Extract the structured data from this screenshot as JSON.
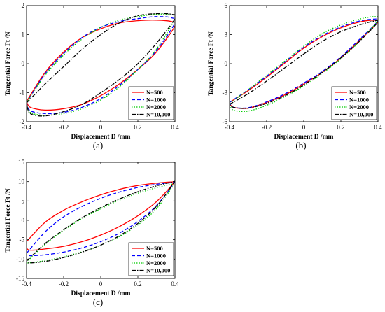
{
  "legend_labels": [
    "N=500",
    "N=1000",
    "N=2000",
    "N=10,000"
  ],
  "series_styles": [
    {
      "color": "#ff0000",
      "dash": "solid"
    },
    {
      "color": "#0000ff",
      "dash": "dashed"
    },
    {
      "color": "#00cc00",
      "dash": "dotted"
    },
    {
      "color": "#000000",
      "dash": "dash-dot"
    }
  ],
  "chart_data": [
    {
      "type": "line",
      "panel_label": "(a)",
      "xlabel": "Displacement D /mm",
      "ylabel": "Tangential Force Ft /N",
      "xlim": [
        -0.4,
        0.4
      ],
      "ylim": [
        -2,
        2
      ],
      "xticks": [
        "-0.4",
        "-0.2",
        "0",
        "0.2",
        "0.4"
      ],
      "yticks": [
        "-2",
        "-1",
        "0",
        "1",
        "2"
      ],
      "grid": false,
      "legend_position": "lower-right",
      "series": [
        {
          "name": "N=500",
          "x": [
            -0.4,
            -0.3,
            -0.2,
            -0.1,
            0.0,
            0.1,
            0.2,
            0.3,
            0.38,
            0.4,
            0.3,
            0.2,
            0.1,
            0.0,
            -0.1,
            -0.2,
            -0.3,
            -0.38,
            -0.4
          ],
          "y": [
            -1.3,
            -0.3,
            0.4,
            0.9,
            1.2,
            1.4,
            1.48,
            1.5,
            1.45,
            1.3,
            0.4,
            -0.2,
            -0.7,
            -1.1,
            -1.4,
            -1.55,
            -1.6,
            -1.5,
            -1.3
          ]
        },
        {
          "name": "N=1000",
          "x": [
            -0.4,
            -0.3,
            -0.2,
            -0.1,
            0.0,
            0.1,
            0.2,
            0.3,
            0.38,
            0.4,
            0.3,
            0.2,
            0.1,
            0.0,
            -0.1,
            -0.2,
            -0.3,
            -0.38,
            -0.4
          ],
          "y": [
            -1.35,
            -0.35,
            0.35,
            0.9,
            1.25,
            1.45,
            1.55,
            1.62,
            1.58,
            1.4,
            0.45,
            -0.2,
            -0.75,
            -1.2,
            -1.5,
            -1.68,
            -1.72,
            -1.62,
            -1.35
          ]
        },
        {
          "name": "N=2000",
          "x": [
            -0.4,
            -0.3,
            -0.2,
            -0.1,
            0.0,
            0.1,
            0.2,
            0.3,
            0.38,
            0.4,
            0.3,
            0.2,
            0.1,
            0.0,
            -0.1,
            -0.2,
            -0.3,
            -0.38,
            -0.4
          ],
          "y": [
            -1.35,
            -0.4,
            0.3,
            0.85,
            1.25,
            1.5,
            1.62,
            1.7,
            1.68,
            1.55,
            0.5,
            -0.2,
            -0.8,
            -1.25,
            -1.55,
            -1.72,
            -1.78,
            -1.68,
            -1.35
          ]
        },
        {
          "name": "N=10,000",
          "x": [
            -0.4,
            -0.3,
            -0.2,
            -0.1,
            0.0,
            0.1,
            0.2,
            0.3,
            0.38,
            0.4,
            0.3,
            0.2,
            0.1,
            0.0,
            -0.1,
            -0.2,
            -0.3,
            -0.38,
            -0.4
          ],
          "y": [
            -1.35,
            -0.7,
            -0.1,
            0.5,
            1.0,
            1.4,
            1.65,
            1.72,
            1.7,
            1.55,
            0.7,
            0.0,
            -0.55,
            -1.0,
            -1.4,
            -1.65,
            -1.8,
            -1.72,
            -1.35
          ]
        }
      ]
    },
    {
      "type": "line",
      "panel_label": "(b)",
      "xlabel": "Displacement D /mm",
      "ylabel": "Tangential Force Ft /N",
      "xlim": [
        -0.4,
        0.4
      ],
      "ylim": [
        -6,
        6
      ],
      "xticks": [
        "-0.4",
        "-0.2",
        "0",
        "0.2",
        "0.4"
      ],
      "yticks": [
        "-6",
        "-3",
        "0",
        "3",
        "6"
      ],
      "grid": false,
      "legend_position": "lower-right",
      "series": [
        {
          "name": "N=500",
          "x": [
            -0.4,
            -0.3,
            -0.2,
            -0.1,
            0.0,
            0.1,
            0.2,
            0.3,
            0.38,
            0.4,
            0.3,
            0.2,
            0.1,
            0.0,
            -0.1,
            -0.2,
            -0.3,
            -0.38,
            -0.4
          ],
          "y": [
            -4.0,
            -2.8,
            -1.4,
            0.1,
            1.6,
            2.8,
            3.7,
            4.3,
            4.5,
            4.3,
            2.4,
            0.6,
            -0.9,
            -2.1,
            -3.2,
            -4.0,
            -4.6,
            -4.5,
            -4.0
          ]
        },
        {
          "name": "N=1000",
          "x": [
            -0.4,
            -0.3,
            -0.2,
            -0.1,
            0.0,
            0.1,
            0.2,
            0.3,
            0.38,
            0.4,
            0.3,
            0.2,
            0.1,
            0.0,
            -0.1,
            -0.2,
            -0.3,
            -0.38,
            -0.4
          ],
          "y": [
            -4.0,
            -2.7,
            -1.3,
            0.2,
            1.7,
            2.9,
            3.8,
            4.4,
            4.6,
            4.4,
            2.5,
            0.7,
            -0.8,
            -2.0,
            -3.1,
            -3.95,
            -4.55,
            -4.5,
            -4.0
          ]
        },
        {
          "name": "N=2000",
          "x": [
            -0.4,
            -0.3,
            -0.2,
            -0.1,
            0.0,
            0.1,
            0.2,
            0.3,
            0.38,
            0.4,
            0.3,
            0.2,
            0.1,
            0.0,
            -0.1,
            -0.2,
            -0.3,
            -0.38,
            -0.4
          ],
          "y": [
            -4.1,
            -2.7,
            -1.2,
            0.3,
            1.8,
            3.1,
            4.0,
            4.6,
            4.85,
            4.5,
            2.3,
            0.5,
            -1.0,
            -2.3,
            -3.4,
            -4.3,
            -4.9,
            -4.8,
            -4.1
          ]
        },
        {
          "name": "N=10,000",
          "x": [
            -0.4,
            -0.3,
            -0.2,
            -0.1,
            0.0,
            0.1,
            0.2,
            0.3,
            0.38,
            0.4,
            0.3,
            0.2,
            0.1,
            0.0,
            -0.1,
            -0.2,
            -0.3,
            -0.38,
            -0.4
          ],
          "y": [
            -4.2,
            -3.1,
            -1.8,
            -0.4,
            1.0,
            2.3,
            3.3,
            4.0,
            4.4,
            4.3,
            2.3,
            0.6,
            -0.9,
            -2.2,
            -3.3,
            -4.1,
            -4.6,
            -4.5,
            -4.2
          ]
        }
      ]
    },
    {
      "type": "line",
      "panel_label": "(c)",
      "xlabel": "Displacement D /mm",
      "ylabel": "Tangential Force Ft /N",
      "xlim": [
        -0.4,
        0.4
      ],
      "ylim": [
        -15,
        15
      ],
      "xticks": [
        "-0.4",
        "-0.2",
        "0",
        "0.2",
        "0.4"
      ],
      "yticks": [
        "-15",
        "-10",
        "-5",
        "0",
        "5",
        "10",
        "15"
      ],
      "grid": false,
      "legend_position": "lower-right",
      "series": [
        {
          "name": "N=500",
          "x": [
            -0.4,
            -0.3,
            -0.2,
            -0.1,
            0.0,
            0.1,
            0.2,
            0.3,
            0.38,
            0.39,
            0.3,
            0.2,
            0.1,
            0.0,
            -0.1,
            -0.2,
            -0.3,
            -0.39,
            -0.4
          ],
          "y": [
            -5.5,
            -0.5,
            2.6,
            4.8,
            6.6,
            8.0,
            9.0,
            9.6,
            9.9,
            9.5,
            4.8,
            1.2,
            -1.6,
            -3.8,
            -5.5,
            -6.7,
            -7.4,
            -7.6,
            -5.5
          ]
        },
        {
          "name": "N=1000",
          "x": [
            -0.4,
            -0.3,
            -0.2,
            -0.1,
            0.0,
            0.1,
            0.2,
            0.3,
            0.38,
            0.39,
            0.3,
            0.2,
            0.1,
            0.0,
            -0.1,
            -0.2,
            -0.3,
            -0.39,
            -0.4
          ],
          "y": [
            -8.5,
            -3.0,
            0.9,
            3.6,
            5.7,
            7.3,
            8.5,
            9.3,
            9.7,
            9.3,
            3.8,
            -0.3,
            -3.3,
            -5.5,
            -7.1,
            -8.2,
            -8.9,
            -9.1,
            -8.5
          ]
        },
        {
          "name": "N=2000",
          "x": [
            -0.4,
            -0.3,
            -0.2,
            -0.1,
            0.0,
            0.1,
            0.2,
            0.3,
            0.38,
            0.39,
            0.3,
            0.2,
            0.1,
            0.0,
            -0.1,
            -0.2,
            -0.3,
            -0.39,
            -0.4
          ],
          "y": [
            -10.8,
            -6.2,
            -2.6,
            0.5,
            3.0,
            5.2,
            7.0,
            8.4,
            9.3,
            9.0,
            3.0,
            -1.2,
            -4.2,
            -6.4,
            -8.1,
            -9.4,
            -10.4,
            -11.0,
            -10.8
          ]
        },
        {
          "name": "N=10,000",
          "x": [
            -0.4,
            -0.3,
            -0.2,
            -0.1,
            0.0,
            0.1,
            0.2,
            0.3,
            0.38,
            0.39,
            0.3,
            0.2,
            0.1,
            0.0,
            -0.1,
            -0.2,
            -0.3,
            -0.39,
            -0.4
          ],
          "y": [
            -10.5,
            -6.0,
            -2.4,
            0.7,
            3.3,
            5.5,
            7.4,
            8.9,
            9.8,
            9.5,
            3.6,
            -0.8,
            -4.0,
            -6.4,
            -8.2,
            -9.6,
            -10.6,
            -11.0,
            -10.5
          ]
        }
      ]
    }
  ]
}
